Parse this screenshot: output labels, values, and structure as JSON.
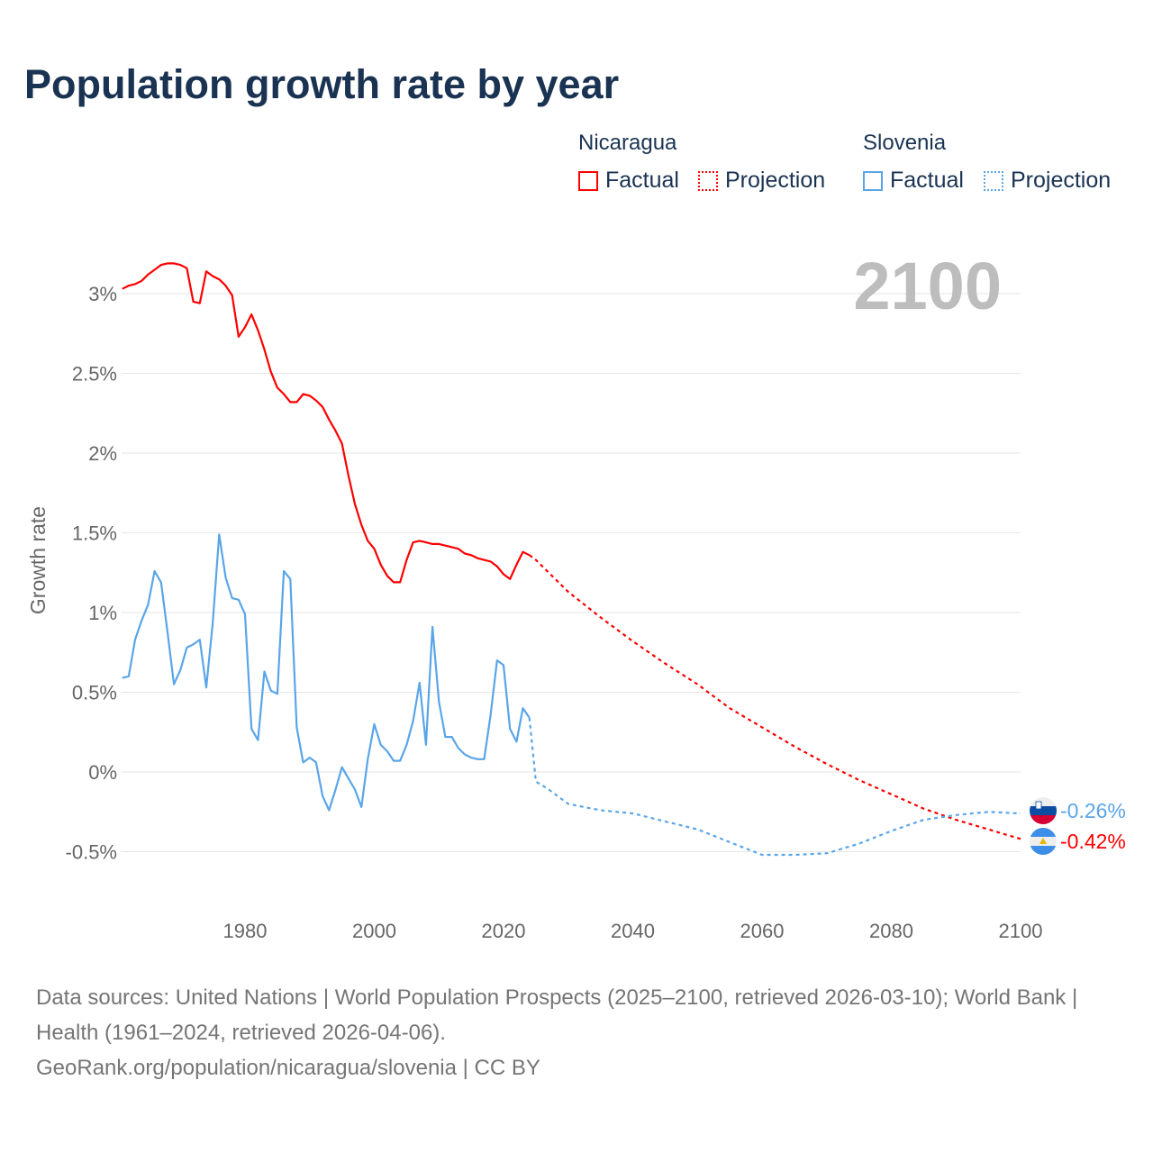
{
  "title": "Population growth rate by year",
  "legend": {
    "groups": [
      {
        "name": "Nicaragua",
        "color": "#ff0000",
        "items": [
          "Factual",
          "Projection"
        ]
      },
      {
        "name": "Slovenia",
        "color": "#5aa5e8",
        "items": [
          "Factual",
          "Projection"
        ]
      }
    ]
  },
  "footer": {
    "sources": "Data sources: United Nations | World Population Prospects (2025–2100, retrieved 2026-03-10); World Bank | Health (1961–2024, retrieved 2026-04-06).",
    "credit": "GeoRank.org/population/nicaragua/slovenia | CC BY"
  },
  "chart_data": {
    "type": "line",
    "title": "Population growth rate by year",
    "ylabel": "Growth rate",
    "xlabel": "",
    "year_label": "2100",
    "xlim": [
      1961,
      2100
    ],
    "ylim": [
      -0.7,
      3.3
    ],
    "x_ticks": [
      1980,
      2000,
      2020,
      2040,
      2060,
      2080,
      2100
    ],
    "y_ticks": [
      {
        "v": 3,
        "label": "3%"
      },
      {
        "v": 2.5,
        "label": "2.5%"
      },
      {
        "v": 2,
        "label": "2%"
      },
      {
        "v": 1.5,
        "label": "1.5%"
      },
      {
        "v": 1,
        "label": "1%"
      },
      {
        "v": 0.5,
        "label": "0.5%"
      },
      {
        "v": 0,
        "label": "0%"
      },
      {
        "v": -0.5,
        "label": "-0.5%"
      }
    ],
    "grid": true,
    "legend_position": "top-right",
    "series": [
      {
        "name": "Nicaragua",
        "color": "#ff0000",
        "end_label": "-0.42%",
        "factual": {
          "start_year": 1961,
          "values": [
            3.03,
            3.05,
            3.06,
            3.08,
            3.12,
            3.15,
            3.18,
            3.19,
            3.19,
            3.18,
            3.16,
            2.95,
            2.94,
            3.14,
            3.11,
            3.09,
            3.05,
            2.99,
            2.73,
            2.79,
            2.87,
            2.77,
            2.65,
            2.51,
            2.41,
            2.37,
            2.32,
            2.32,
            2.37,
            2.36,
            2.33,
            2.29,
            2.21,
            2.14,
            2.06,
            1.86,
            1.68,
            1.55,
            1.45,
            1.4,
            1.3,
            1.23,
            1.19,
            1.19,
            1.33,
            1.44,
            1.45,
            1.44,
            1.43,
            1.43,
            1.42,
            1.41,
            1.4,
            1.37,
            1.36,
            1.34,
            1.33,
            1.32,
            1.29,
            1.24,
            1.21,
            1.3,
            1.38,
            1.36
          ]
        },
        "projection": {
          "years": [
            2024,
            2025,
            2030,
            2035,
            2040,
            2045,
            2050,
            2055,
            2060,
            2065,
            2070,
            2075,
            2080,
            2085,
            2090,
            2095,
            2100
          ],
          "values": [
            1.36,
            1.33,
            1.13,
            0.97,
            0.82,
            0.68,
            0.55,
            0.4,
            0.28,
            0.16,
            0.05,
            -0.05,
            -0.14,
            -0.23,
            -0.3,
            -0.36,
            -0.42
          ]
        }
      },
      {
        "name": "Slovenia",
        "color": "#5aa5e8",
        "end_label": "-0.26%",
        "factual": {
          "start_year": 1961,
          "values": [
            0.59,
            0.6,
            0.83,
            0.95,
            1.05,
            1.26,
            1.19,
            0.88,
            0.55,
            0.64,
            0.78,
            0.8,
            0.83,
            0.53,
            0.93,
            1.49,
            1.22,
            1.09,
            1.08,
            0.99,
            0.27,
            0.2,
            0.63,
            0.51,
            0.49,
            1.26,
            1.21,
            0.28,
            0.06,
            0.09,
            0.06,
            -0.15,
            -0.24,
            -0.11,
            0.03,
            -0.04,
            -0.11,
            -0.22,
            0.08,
            0.3,
            0.17,
            0.13,
            0.07,
            0.07,
            0.17,
            0.32,
            0.56,
            0.17,
            0.91,
            0.44,
            0.22,
            0.22,
            0.15,
            0.11,
            0.09,
            0.08,
            0.08,
            0.36,
            0.7,
            0.67,
            0.27,
            0.19,
            0.4,
            0.34
          ]
        },
        "projection": {
          "years": [
            2024,
            2025,
            2027,
            2030,
            2035,
            2040,
            2045,
            2050,
            2055,
            2060,
            2065,
            2070,
            2075,
            2080,
            2085,
            2090,
            2095,
            2100
          ],
          "values": [
            0.34,
            -0.06,
            -0.11,
            -0.2,
            -0.24,
            -0.26,
            -0.31,
            -0.36,
            -0.44,
            -0.52,
            -0.52,
            -0.51,
            -0.45,
            -0.37,
            -0.3,
            -0.27,
            -0.25,
            -0.26
          ]
        }
      }
    ]
  }
}
